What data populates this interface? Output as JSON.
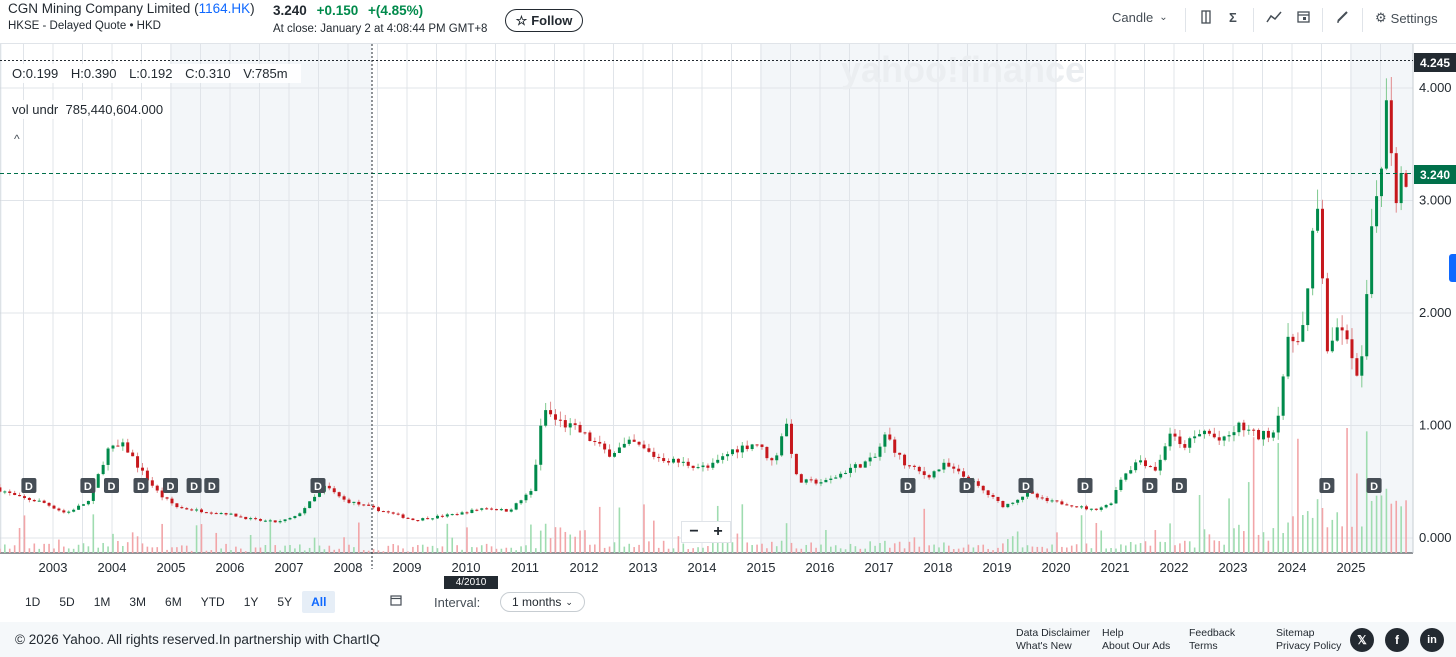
{
  "header": {
    "company": "CGN Mining Company Limited",
    "symbol": "1164.HK",
    "exchange_line": "HKSE - Delayed Quote • HKD",
    "price": "3.240",
    "change": "+0.150",
    "change_pct": "+(4.85%)",
    "close_note": "At close: January 2 at 4:08:44 PM GMT+8",
    "follow_label": "Follow",
    "chart_type_label": "Candle",
    "settings_label": "Settings",
    "colors": {
      "up": "#008a4b",
      "down": "#c6171c",
      "accent": "#0f69ff"
    }
  },
  "ohlc": {
    "o": "O:0.199",
    "h": "H:0.390",
    "l": "L:0.192",
    "c": "C:0.310",
    "v": "V:785m"
  },
  "vol_underlay": {
    "label": "vol undr",
    "value": "785,440,604.000"
  },
  "watermark": "yahoo!finance",
  "price_tags": {
    "high": "4.245",
    "last": "3.240"
  },
  "crosshair_date": "4/2010",
  "chart_data": {
    "type": "candlestick",
    "y_ticks": [
      "0.000",
      "1.000",
      "2.000",
      "3.000",
      "4.000"
    ],
    "ylim": [
      0,
      4.5
    ],
    "x_ticks": [
      "2003",
      "2004",
      "2005",
      "2006",
      "2007",
      "2008",
      "2009",
      "2010",
      "2011",
      "2012",
      "2013",
      "2014",
      "2015",
      "2016",
      "2017",
      "2018",
      "2019",
      "2020",
      "2021",
      "2022",
      "2023",
      "2024",
      "2025"
    ],
    "x_range": [
      2002.1,
      2026.0
    ],
    "last_price": 3.24,
    "period_high": 4.245,
    "dividend_markers": {
      "label": "D",
      "dates": [
        2002.6,
        2003.6,
        2004.0,
        2004.5,
        2005.0,
        2005.4,
        2005.7,
        2007.5,
        2017.5,
        2018.5,
        2019.5,
        2020.5,
        2021.6,
        2022.1,
        2024.6,
        2025.4
      ]
    },
    "shaded_years": [
      2005,
      2015,
      2025
    ],
    "price_path": [
      [
        2002.1,
        0.45
      ],
      [
        2002.5,
        0.36
      ],
      [
        2002.9,
        0.32
      ],
      [
        2003.3,
        0.22
      ],
      [
        2003.7,
        0.33
      ],
      [
        2004.0,
        0.78
      ],
      [
        2004.3,
        0.82
      ],
      [
        2004.6,
        0.58
      ],
      [
        2004.9,
        0.38
      ],
      [
        2005.2,
        0.27
      ],
      [
        2005.6,
        0.24
      ],
      [
        2006.0,
        0.22
      ],
      [
        2006.5,
        0.16
      ],
      [
        2006.9,
        0.14
      ],
      [
        2007.2,
        0.19
      ],
      [
        2007.5,
        0.35
      ],
      [
        2007.7,
        0.46
      ],
      [
        2008.0,
        0.34
      ],
      [
        2008.4,
        0.28
      ],
      [
        2008.8,
        0.22
      ],
      [
        2009.2,
        0.16
      ],
      [
        2009.6,
        0.19
      ],
      [
        2010.0,
        0.22
      ],
      [
        2010.4,
        0.27
      ],
      [
        2010.8,
        0.24
      ],
      [
        2011.2,
        0.42
      ],
      [
        2011.4,
        1.15
      ],
      [
        2011.6,
        1.05
      ],
      [
        2012.0,
        0.95
      ],
      [
        2012.5,
        0.75
      ],
      [
        2012.9,
        0.85
      ],
      [
        2013.3,
        0.72
      ],
      [
        2013.8,
        0.66
      ],
      [
        2014.2,
        0.62
      ],
      [
        2014.6,
        0.78
      ],
      [
        2015.0,
        0.85
      ],
      [
        2015.3,
        0.66
      ],
      [
        2015.5,
        1.05
      ],
      [
        2015.7,
        0.5
      ],
      [
        2016.2,
        0.5
      ],
      [
        2016.6,
        0.62
      ],
      [
        2017.0,
        0.7
      ],
      [
        2017.2,
        0.92
      ],
      [
        2017.5,
        0.66
      ],
      [
        2017.9,
        0.55
      ],
      [
        2018.2,
        0.65
      ],
      [
        2018.6,
        0.52
      ],
      [
        2018.9,
        0.4
      ],
      [
        2019.2,
        0.28
      ],
      [
        2019.6,
        0.4
      ],
      [
        2019.9,
        0.33
      ],
      [
        2020.3,
        0.3
      ],
      [
        2020.7,
        0.25
      ],
      [
        2021.0,
        0.3
      ],
      [
        2021.2,
        0.55
      ],
      [
        2021.5,
        0.7
      ],
      [
        2021.8,
        0.6
      ],
      [
        2022.0,
        0.95
      ],
      [
        2022.2,
        0.8
      ],
      [
        2022.6,
        0.95
      ],
      [
        2022.9,
        0.85
      ],
      [
        2023.2,
        1.0
      ],
      [
        2023.5,
        0.9
      ],
      [
        2023.8,
        0.95
      ],
      [
        2024.0,
        1.7
      ],
      [
        2024.3,
        1.9
      ],
      [
        2024.5,
        3.0
      ],
      [
        2024.6,
        2.35
      ],
      [
        2024.7,
        1.55
      ],
      [
        2024.9,
        1.95
      ],
      [
        2025.1,
        1.55
      ],
      [
        2025.25,
        1.45
      ],
      [
        2025.4,
        2.5
      ],
      [
        2025.55,
        3.2
      ],
      [
        2025.7,
        3.9
      ],
      [
        2025.85,
        3.05
      ],
      [
        2025.95,
        3.24
      ]
    ]
  },
  "zoom": {
    "minus": "−",
    "plus": "+"
  },
  "ranges": [
    "1D",
    "5D",
    "1M",
    "3M",
    "6M",
    "YTD",
    "1Y",
    "5Y",
    "All"
  ],
  "active_range": "All",
  "interval": {
    "label": "Interval:",
    "value": "1 months"
  },
  "footer": {
    "copyright": "© 2026 Yahoo. All rights reserved.In partnership with ChartIQ",
    "links": [
      "Data Disclaimer",
      "What's New",
      "Help",
      "About Our Ads",
      "Feedback",
      "Terms",
      "Sitemap",
      "Privacy Policy"
    ],
    "social": [
      "x-icon",
      "facebook-icon",
      "linkedin-icon"
    ]
  }
}
